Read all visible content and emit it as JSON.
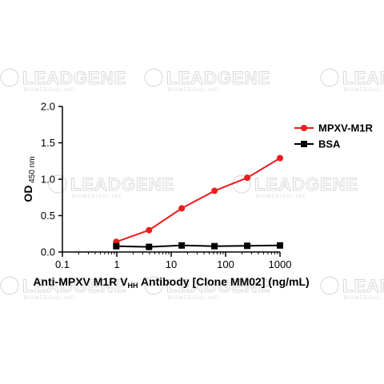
{
  "watermark": {
    "text": "LEADGENE",
    "subtext": "BIOMEDICAL INC."
  },
  "chart_data": {
    "type": "line",
    "x_scale": "log",
    "xlim": [
      0.1,
      1000
    ],
    "ylim": [
      0,
      2.0
    ],
    "x_ticks": [
      "0.1",
      "1",
      "10",
      "100",
      "1000"
    ],
    "y_ticks": [
      "0.0",
      "0.5",
      "1.0",
      "1.5",
      "2.0"
    ],
    "xlabel": {
      "main": "Anti-MPXV M1R V",
      "sub": "HH",
      "rest": " Antibody [Clone MM02] (ng/mL)"
    },
    "ylabel": {
      "main": "OD",
      "sub": " 450 nm"
    },
    "legend_position": "top-right",
    "series": [
      {
        "name": "MPXV-M1R",
        "color": "#ee1c1c",
        "marker": "circle",
        "x": [
          0.977,
          3.91,
          15.6,
          62.5,
          250,
          1000
        ],
        "y": [
          0.14,
          0.3,
          0.6,
          0.84,
          1.02,
          1.29
        ]
      },
      {
        "name": "BSA",
        "color": "#000000",
        "marker": "square",
        "x": [
          0.977,
          3.91,
          15.6,
          62.5,
          250,
          1000
        ],
        "y": [
          0.08,
          0.07,
          0.09,
          0.08,
          0.085,
          0.09
        ]
      }
    ]
  }
}
